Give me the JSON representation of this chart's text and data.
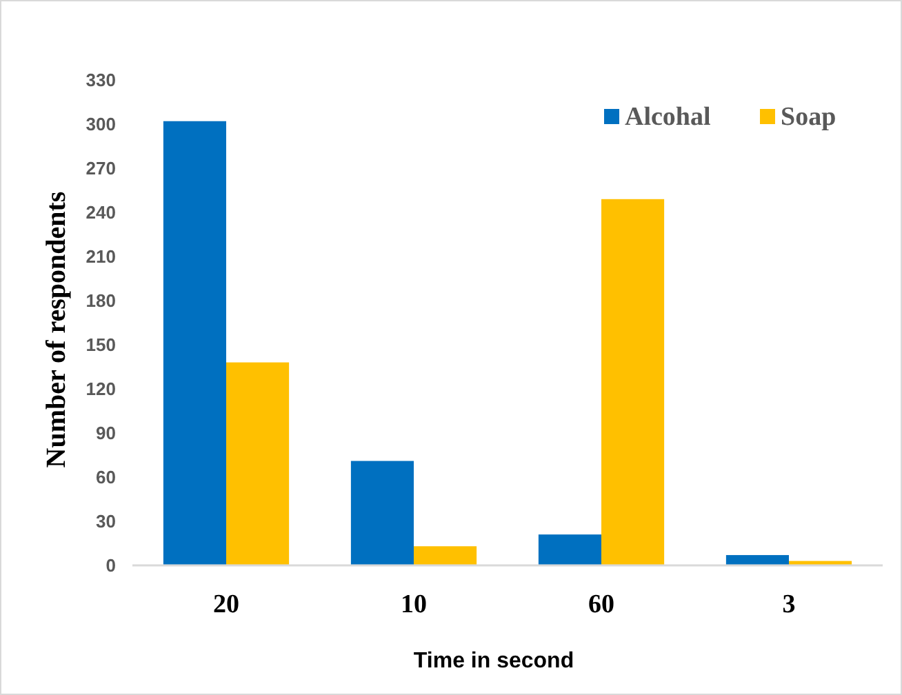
{
  "chart_data": {
    "type": "bar",
    "xlabel": "Time in second",
    "ylabel": "Number of respondents",
    "categories": [
      "20",
      "10",
      "60",
      "3"
    ],
    "series": [
      {
        "name": "Alcohal",
        "color": "#0070c0",
        "values": [
          302,
          71,
          21,
          7
        ]
      },
      {
        "name": "Soap",
        "color": "#ffc000",
        "values": [
          138,
          13,
          249,
          3
        ]
      }
    ],
    "ylim": [
      0,
      330
    ],
    "yticks": [
      0,
      30,
      60,
      90,
      120,
      150,
      180,
      210,
      240,
      270,
      300,
      330
    ],
    "grid": false,
    "legend": "top right"
  }
}
